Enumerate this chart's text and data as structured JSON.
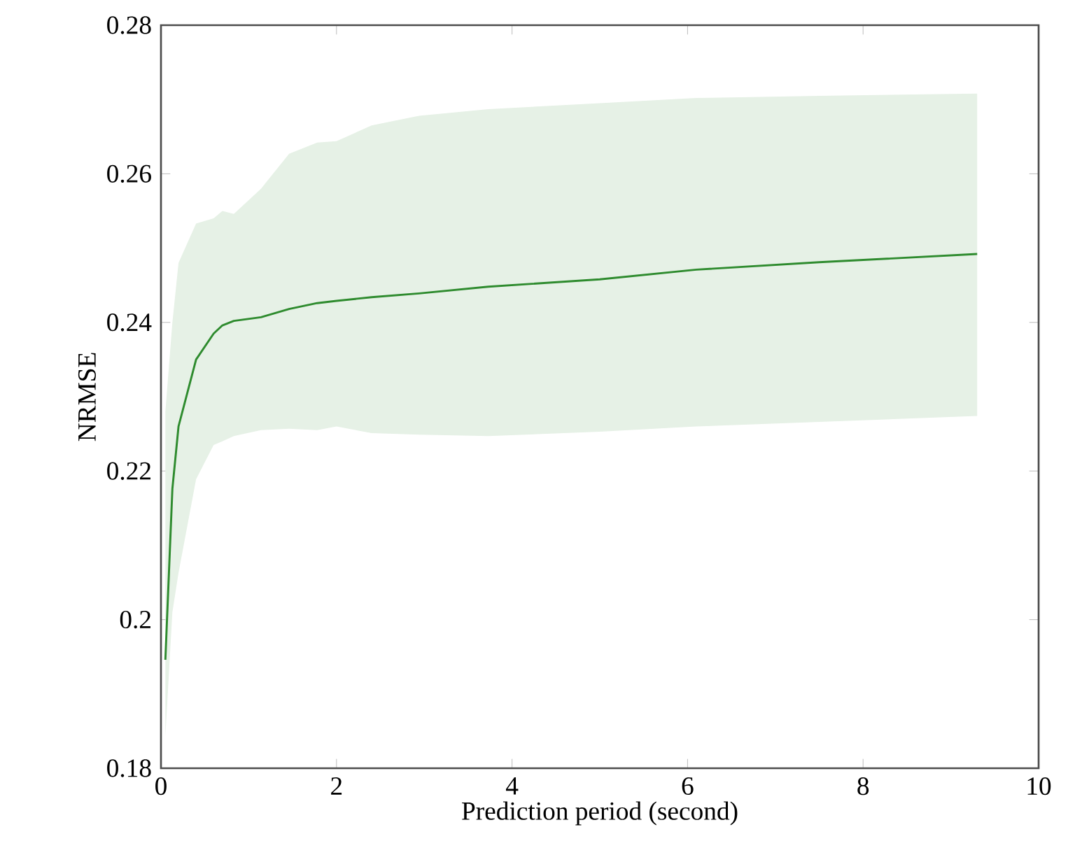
{
  "chart_data": {
    "type": "line",
    "xlabel": "Prediction period (second)",
    "ylabel": "NRMSE",
    "xlim": [
      0,
      10
    ],
    "xticks": [
      0,
      2,
      4,
      6,
      8,
      10
    ],
    "ylim": [
      0.18,
      0.28
    ],
    "yticks": [
      0.18,
      0.2,
      0.22,
      0.24,
      0.26,
      0.28
    ],
    "grid": false,
    "marker": "none",
    "line_style": "solid",
    "series": [
      {
        "color": "#2e8b2e",
        "x": [
          0.05,
          0.13,
          0.2,
          0.4,
          0.6,
          0.7,
          0.83,
          1.14,
          1.46,
          1.78,
          2.0,
          2.4,
          2.94,
          3.73,
          5,
          6.1,
          7.5,
          9.3
        ],
        "values": [
          0.1946,
          0.2176,
          0.226,
          0.235,
          0.2385,
          0.2396,
          0.2402,
          0.2407,
          0.2418,
          0.2426,
          0.2429,
          0.2434,
          0.2439,
          0.2448,
          0.2458,
          0.2471,
          0.2481,
          0.2492
        ],
        "upper": [
          0.228,
          0.24,
          0.248,
          0.2533,
          0.254,
          0.255,
          0.2546,
          0.258,
          0.2627,
          0.2642,
          0.2644,
          0.2665,
          0.2678,
          0.2687,
          0.2695,
          0.2702,
          0.2705,
          0.2708
        ],
        "lower": [
          0.1843,
          0.201,
          0.2063,
          0.2189,
          0.2235,
          0.224,
          0.2247,
          0.2255,
          0.2257,
          0.2255,
          0.226,
          0.2251,
          0.2249,
          0.2247,
          0.2253,
          0.226,
          0.2266,
          0.2274
        ]
      }
    ]
  }
}
